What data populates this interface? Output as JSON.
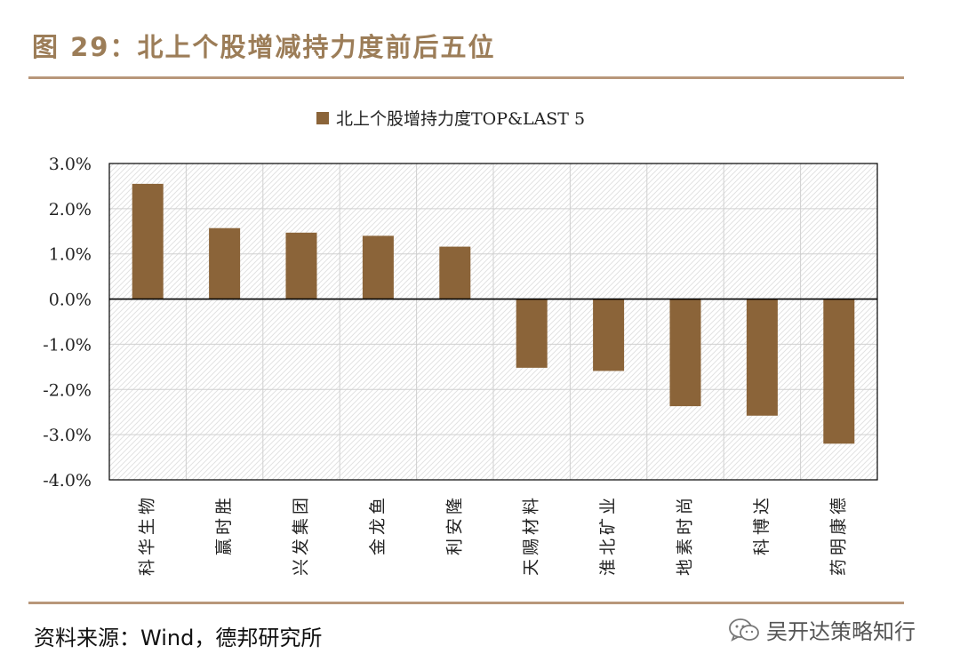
{
  "figure": {
    "title": "图 29：北上个股增减持力度前后五位",
    "source": "资料来源：Wind，德邦研究所",
    "watermark": "吴开达策略知行",
    "watermark_icon": "wechat-icon"
  },
  "colors": {
    "bar": "#8b6439",
    "title": "#9c7d58",
    "rule": "#b8977a",
    "axis": "#000000",
    "grid": "#d0d0d0"
  },
  "chart_data": {
    "type": "bar",
    "categories": [
      "科华生物",
      "赢时胜",
      "兴发集团",
      "金龙鱼",
      "利安隆",
      "天赐材料",
      "淮北矿业",
      "地素时尚",
      "科博达",
      "药明康德"
    ],
    "series": [
      {
        "name": "北上个股增持力度TOP&LAST 5",
        "values": [
          2.55,
          1.57,
          1.47,
          1.4,
          1.16,
          -1.52,
          -1.59,
          -2.37,
          -2.58,
          -3.2
        ]
      }
    ],
    "y_ticks": [
      "3.0%",
      "2.0%",
      "1.0%",
      "0.0%",
      "-1.0%",
      "-2.0%",
      "-3.0%",
      "-4.0%"
    ],
    "ylim": [
      -4,
      3
    ],
    "y_unit": "%",
    "legend": "top-center",
    "grid": true
  }
}
